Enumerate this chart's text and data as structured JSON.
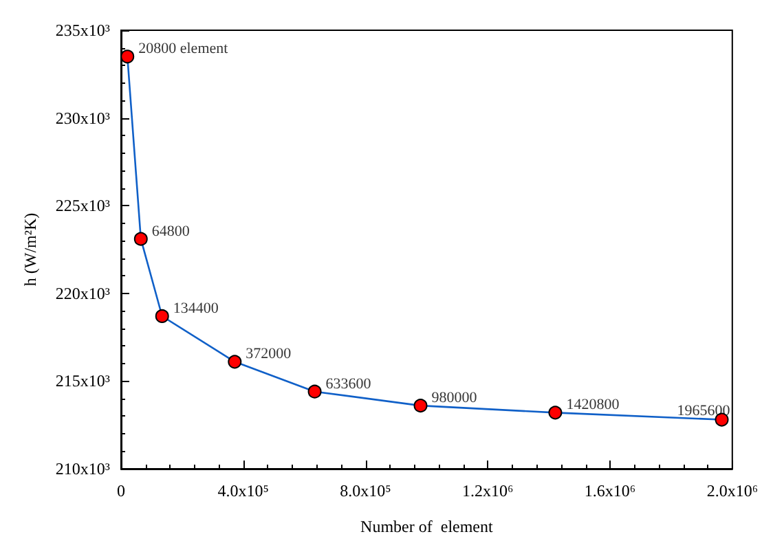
{
  "chart_data": {
    "type": "line",
    "xlabel": "Number of  element",
    "ylabel": "h (W/m²K)",
    "x": [
      20800,
      64800,
      134400,
      372000,
      633600,
      980000,
      1420800,
      1965600
    ],
    "series": [
      {
        "color": "#1060c8",
        "values": [
          233500,
          223100,
          218700,
          216100,
          214400,
          213600,
          213200,
          212800
        ]
      }
    ],
    "marker": "circle",
    "line_style": "solid",
    "grid": false,
    "xlim": [
      0,
      2000000
    ],
    "xticks": [
      0,
      {
        "value": 400000,
        "label": "4.0x10⁵"
      },
      {
        "value": 800000,
        "label": "8.0x10⁵"
      },
      {
        "value": 1200000,
        "label": "1.2x10⁶"
      },
      {
        "value": 1600000,
        "label": "1.6x10⁶"
      },
      {
        "value": 2000000,
        "label": "2.0x10⁶"
      }
    ],
    "ylim": [
      210000,
      235000
    ],
    "yticks": [
      {
        "value": 210000,
        "label": "210x10³"
      },
      {
        "value": 215000,
        "label": "215x10³"
      },
      {
        "value": 220000,
        "label": "220x10³"
      },
      {
        "value": 225000,
        "label": "225x10³"
      },
      {
        "value": 230000,
        "label": "230x10³"
      },
      {
        "value": 235000,
        "label": "235x10³"
      }
    ],
    "annotations": [
      {
        "text": "20800 element",
        "x": 20800,
        "y": 233500
      },
      {
        "text": "64800",
        "x": 64800,
        "y": 223100
      },
      {
        "text": "134400",
        "x": 134400,
        "y": 218700
      },
      {
        "text": "372000",
        "x": 372000,
        "y": 216100
      },
      {
        "text": "633600",
        "x": 633600,
        "y": 214400
      },
      {
        "text": "980000",
        "x": 980000,
        "y": 213600
      },
      {
        "text": "1420800",
        "x": 1420800,
        "y": 213200
      },
      {
        "text": "1965600",
        "x": 1965600,
        "y": 212800
      }
    ]
  }
}
